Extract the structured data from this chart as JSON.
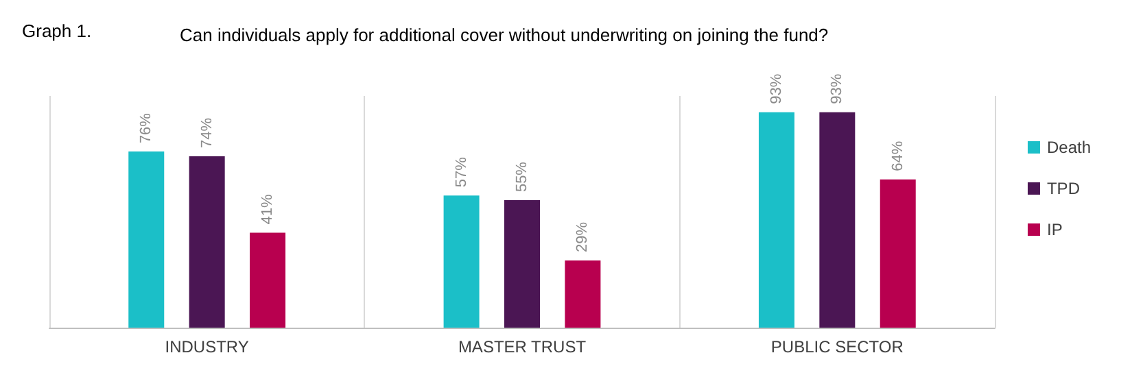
{
  "chart_data": {
    "type": "bar",
    "title": "Can individuals apply for additional cover without underwriting on joining the fund?",
    "annotations": [
      "Graph 1."
    ],
    "categories": [
      "INDUSTRY",
      "MASTER TRUST",
      "PUBLIC SECTOR"
    ],
    "series": [
      {
        "name": "Death",
        "color": "#1bbfc8",
        "values": [
          76,
          57,
          93
        ],
        "value_labels": [
          "76%",
          "57%",
          "93%"
        ]
      },
      {
        "name": "TPD",
        "color": "#4b1654",
        "values": [
          74,
          55,
          93
        ],
        "value_labels": [
          "74%",
          "55%",
          "93%"
        ]
      },
      {
        "name": "IP",
        "color": "#b8004f",
        "values": [
          41,
          29,
          64
        ],
        "value_labels": [
          "41%",
          "29%",
          "64%"
        ]
      }
    ],
    "grid": "x",
    "legend": "right"
  }
}
